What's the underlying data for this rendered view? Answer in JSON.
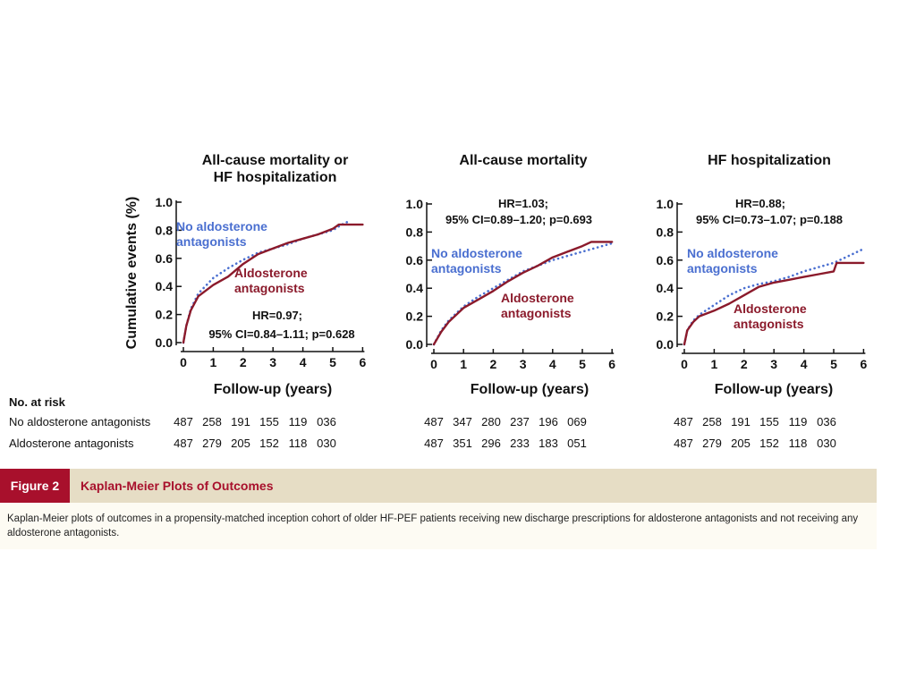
{
  "chart_data": [
    {
      "type": "line",
      "title": "All-cause mortality or HF hospitalization",
      "xlabel": "Follow-up (years)",
      "ylabel": "Cumulative events (%)",
      "xlim": [
        0,
        6
      ],
      "ylim": [
        0,
        1.0
      ],
      "xticks": [
        "0",
        "1",
        "2",
        "3",
        "4",
        "5",
        "6"
      ],
      "yticks": [
        "0.0",
        "0.2",
        "0.4",
        "0.6",
        "0.8",
        "1.0"
      ],
      "series": [
        {
          "name": "No aldosterone antagonists",
          "color": "#4a6fd0",
          "style": "dotted",
          "x": [
            0,
            0.1,
            0.25,
            0.5,
            1,
            1.5,
            2,
            2.5,
            3,
            3.5,
            4,
            4.5,
            5,
            5.3,
            5.6
          ],
          "y": [
            0,
            0.12,
            0.24,
            0.35,
            0.46,
            0.53,
            0.59,
            0.64,
            0.67,
            0.7,
            0.74,
            0.77,
            0.8,
            0.84,
            0.87
          ]
        },
        {
          "name": "Aldosterone antagonists",
          "color": "#8b1a2b",
          "style": "solid",
          "x": [
            0,
            0.1,
            0.25,
            0.5,
            1,
            1.5,
            2,
            2.5,
            3,
            3.5,
            4,
            4.5,
            5,
            5.2,
            6
          ],
          "y": [
            0,
            0.12,
            0.23,
            0.33,
            0.41,
            0.47,
            0.56,
            0.63,
            0.67,
            0.71,
            0.74,
            0.77,
            0.81,
            0.84,
            0.84
          ]
        }
      ],
      "annotation": {
        "line1": "HR=0.97;",
        "line2": "95% CI=0.84–1.11; p=0.628"
      }
    },
    {
      "type": "line",
      "title": "All-cause mortality",
      "xlabel": "Follow-up (years)",
      "ylabel": "",
      "xlim": [
        0,
        6
      ],
      "ylim": [
        0,
        1.0
      ],
      "xticks": [
        "0",
        "1",
        "2",
        "3",
        "4",
        "5",
        "6"
      ],
      "yticks": [
        "0.0",
        "0.2",
        "0.4",
        "0.6",
        "0.8",
        "1.0"
      ],
      "series": [
        {
          "name": "No aldosterone antagonists",
          "color": "#4a6fd0",
          "style": "dotted",
          "x": [
            0,
            0.25,
            0.5,
            1,
            1.5,
            2,
            2.5,
            3,
            3.5,
            4,
            4.5,
            5,
            5.5,
            6
          ],
          "y": [
            0,
            0.1,
            0.17,
            0.27,
            0.34,
            0.4,
            0.46,
            0.52,
            0.56,
            0.6,
            0.63,
            0.66,
            0.69,
            0.72
          ]
        },
        {
          "name": "Aldosterone antagonists",
          "color": "#8b1a2b",
          "style": "solid",
          "x": [
            0,
            0.25,
            0.5,
            1,
            1.5,
            2,
            2.5,
            3,
            3.5,
            4,
            4.5,
            5,
            5.3,
            6
          ],
          "y": [
            0,
            0.09,
            0.16,
            0.26,
            0.32,
            0.38,
            0.45,
            0.51,
            0.56,
            0.62,
            0.66,
            0.7,
            0.73,
            0.73
          ]
        }
      ],
      "annotation": {
        "line1": "HR=1.03;",
        "line2": "95% CI=0.89–1.20; p=0.693"
      }
    },
    {
      "type": "line",
      "title": "HF hospitalization",
      "xlabel": "Follow-up (years)",
      "ylabel": "",
      "xlim": [
        0,
        6
      ],
      "ylim": [
        0,
        1.0
      ],
      "xticks": [
        "0",
        "1",
        "2",
        "3",
        "4",
        "5",
        "6"
      ],
      "yticks": [
        "0.0",
        "0.2",
        "0.4",
        "0.6",
        "0.8",
        "1.0"
      ],
      "series": [
        {
          "name": "No aldosterone antagonists",
          "color": "#4a6fd0",
          "style": "dotted",
          "x": [
            0,
            0.1,
            0.3,
            0.5,
            1,
            1.5,
            2,
            2.5,
            3,
            3.5,
            4,
            4.5,
            5,
            5.5,
            6
          ],
          "y": [
            0,
            0.1,
            0.17,
            0.21,
            0.28,
            0.35,
            0.4,
            0.43,
            0.45,
            0.48,
            0.52,
            0.55,
            0.58,
            0.63,
            0.68
          ]
        },
        {
          "name": "Aldosterone antagonists",
          "color": "#8b1a2b",
          "style": "solid",
          "x": [
            0,
            0.1,
            0.3,
            0.5,
            1,
            1.5,
            2,
            2.5,
            3,
            3.5,
            4,
            4.5,
            5,
            5.1,
            6
          ],
          "y": [
            0,
            0.1,
            0.16,
            0.2,
            0.24,
            0.29,
            0.35,
            0.41,
            0.44,
            0.46,
            0.48,
            0.5,
            0.52,
            0.58,
            0.58
          ]
        }
      ],
      "annotation": {
        "line1": "HR=0.88;",
        "line2": "95% CI=0.73–1.07; p=0.188"
      }
    }
  ],
  "panels": [
    {
      "title_line1": "All-cause mortality or",
      "title_line2": "HF hospitalization",
      "label_no": "No aldosterone",
      "label_no2": "antagonists",
      "label_yes": "Aldosterone",
      "label_yes2": "antagonists"
    },
    {
      "title_line1": "All-cause mortality",
      "title_line2": "",
      "label_no": "No aldosterone",
      "label_no2": "antagonists",
      "label_yes": "Aldosterone",
      "label_yes2": "antagonists"
    },
    {
      "title_line1": "HF hospitalization",
      "title_line2": "",
      "label_no": "No aldosterone",
      "label_no2": "antagonists",
      "label_yes": "Aldosterone",
      "label_yes2": "antagonists"
    }
  ],
  "at_risk": {
    "header": "No. at risk",
    "rows": [
      {
        "label": "No aldosterone antagonists",
        "panels": [
          [
            "487",
            "258",
            "191",
            "155",
            "119",
            "036"
          ],
          [
            "487",
            "347",
            "280",
            "237",
            "196",
            "069"
          ],
          [
            "487",
            "258",
            "191",
            "155",
            "119",
            "036"
          ]
        ]
      },
      {
        "label": "Aldosterone antagonists",
        "panels": [
          [
            "487",
            "279",
            "205",
            "152",
            "118",
            "030"
          ],
          [
            "487",
            "351",
            "296",
            "233",
            "183",
            "051"
          ],
          [
            "487",
            "279",
            "205",
            "152",
            "118",
            "030"
          ]
        ]
      }
    ]
  },
  "figure": {
    "label": "Figure 2",
    "title": "Kaplan-Meier Plots of Outcomes",
    "caption": "Kaplan-Meier plots of outcomes in a propensity-matched inception cohort of older HF-PEF patients receiving new discharge prescriptions for aldosterone antagonists and not receiving any aldosterone antagonists."
  },
  "colors": {
    "no_aa": "#4a6fd0",
    "aa": "#8b1a2b",
    "accent": "#a8102c",
    "bar_bg": "#e6ddc5"
  }
}
